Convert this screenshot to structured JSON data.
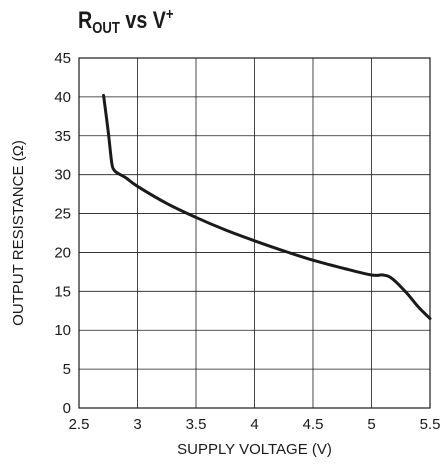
{
  "chart_data": {
    "type": "line",
    "title_main": "R",
    "title_sub": "OUT",
    "title_mid": " vs V",
    "title_sup": "+",
    "xlabel": "SUPPLY VOLTAGE (V)",
    "ylabel": "OUTPUT RESISTANCE (Ω)",
    "xlim": [
      2.5,
      5.5
    ],
    "ylim": [
      0,
      45
    ],
    "xticks": [
      "2.5",
      "3",
      "3.5",
      "4",
      "4.5",
      "5",
      "5.5"
    ],
    "yticks": [
      "0",
      "5",
      "10",
      "15",
      "20",
      "25",
      "30",
      "35",
      "40",
      "45"
    ],
    "grid": true,
    "series": [
      {
        "x": [
          2.71,
          2.75,
          2.78,
          2.8,
          2.83,
          2.9,
          3.0,
          3.25,
          3.5,
          3.75,
          4.0,
          4.25,
          4.5,
          4.75,
          5.0,
          5.1,
          5.18,
          5.3,
          5.4,
          5.5
        ],
        "y": [
          40.2,
          35.5,
          31.5,
          30.6,
          30.2,
          29.6,
          28.5,
          26.3,
          24.5,
          22.9,
          21.5,
          20.2,
          19.0,
          18.0,
          17.1,
          17.1,
          16.6,
          14.8,
          13.0,
          11.5
        ]
      }
    ]
  }
}
